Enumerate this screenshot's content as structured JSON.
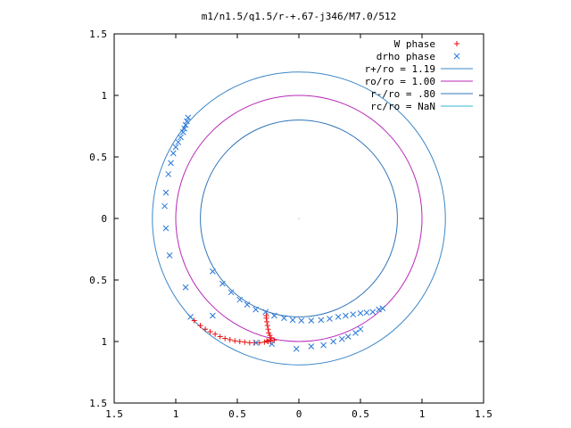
{
  "chart_data": {
    "type": "scatter",
    "title": "m1/n1.5/q1.5/r-+.67-j346/M7.0/512",
    "xlim": [
      -1.5,
      1.5
    ],
    "ylim": [
      -1.5,
      1.5
    ],
    "xticks": [
      {
        "v": -1.5,
        "label": "1.5"
      },
      {
        "v": -1,
        "label": "1"
      },
      {
        "v": -0.5,
        "label": "0.5"
      },
      {
        "v": 0,
        "label": "0"
      },
      {
        "v": 0.5,
        "label": "0.5"
      },
      {
        "v": 1,
        "label": "1"
      },
      {
        "v": 1.5,
        "label": "1.5"
      }
    ],
    "yticks": [
      {
        "v": 1.5,
        "label": "1.5"
      },
      {
        "v": 1,
        "label": "1"
      },
      {
        "v": 0.5,
        "label": "0.5"
      },
      {
        "v": 0,
        "label": "0"
      },
      {
        "v": -0.5,
        "label": "0.5"
      },
      {
        "v": -1,
        "label": "1"
      },
      {
        "v": -1.5,
        "label": "1.5"
      }
    ],
    "grid": false,
    "legend_position": "top-right",
    "circles": [
      {
        "name": "r+/ro = 1.19",
        "radius": 1.19,
        "color": "#3c87c8"
      },
      {
        "name": "ro/ro = 1.00",
        "radius": 1.0,
        "color": "#b828b8"
      },
      {
        "name": "r-/ro = .80",
        "radius": 0.8,
        "color": "#2f74b8"
      },
      {
        "name": "rc/ro = NaN",
        "radius": null,
        "color": "#32b4d0"
      }
    ],
    "series": [
      {
        "name": "W phase",
        "marker": "plus",
        "color": "#e81010",
        "points": [
          [
            -0.85,
            -0.83
          ],
          [
            -0.8,
            -0.87
          ],
          [
            -0.76,
            -0.9
          ],
          [
            -0.72,
            -0.92
          ],
          [
            -0.68,
            -0.94
          ],
          [
            -0.64,
            -0.96
          ],
          [
            -0.6,
            -0.975
          ],
          [
            -0.56,
            -0.985
          ],
          [
            -0.52,
            -0.995
          ],
          [
            -0.48,
            -1.0
          ],
          [
            -0.44,
            -1.005
          ],
          [
            -0.4,
            -1.01
          ],
          [
            -0.36,
            -1.01
          ],
          [
            -0.32,
            -1.01
          ],
          [
            -0.28,
            -1.005
          ],
          [
            -0.25,
            -1.0
          ],
          [
            -0.235,
            -0.99
          ],
          [
            -0.225,
            -0.97
          ],
          [
            -0.235,
            -0.95
          ],
          [
            -0.245,
            -0.93
          ],
          [
            -0.25,
            -0.9
          ],
          [
            -0.255,
            -0.87
          ],
          [
            -0.26,
            -0.84
          ],
          [
            -0.265,
            -0.81
          ],
          [
            -0.265,
            -0.79
          ],
          [
            -0.2,
            -0.99
          ],
          [
            -0.26,
            -0.995
          ],
          [
            -0.23,
            -1.0
          ]
        ]
      },
      {
        "name": "drho phase",
        "marker": "cross",
        "color": "#2878d8",
        "points": [
          [
            -0.9,
            0.82
          ],
          [
            -0.91,
            0.79
          ],
          [
            -0.92,
            0.76
          ],
          [
            -0.93,
            0.73
          ],
          [
            -0.94,
            0.7
          ],
          [
            -0.96,
            0.66
          ],
          [
            -0.98,
            0.62
          ],
          [
            -1.0,
            0.58
          ],
          [
            -1.02,
            0.53
          ],
          [
            -1.04,
            0.45
          ],
          [
            -1.06,
            0.36
          ],
          [
            -1.08,
            0.21
          ],
          [
            -1.09,
            0.1
          ],
          [
            -1.08,
            -0.08
          ],
          [
            -1.05,
            -0.3
          ],
          [
            -0.92,
            -0.56
          ],
          [
            -0.88,
            -0.8
          ],
          [
            -0.7,
            -0.79
          ],
          [
            -0.7,
            -0.43
          ],
          [
            -0.62,
            -0.53
          ],
          [
            -0.55,
            -0.6
          ],
          [
            -0.48,
            -0.66
          ],
          [
            -0.42,
            -0.7
          ],
          [
            -0.35,
            -0.74
          ],
          [
            -0.27,
            -0.76
          ],
          [
            -0.2,
            -0.79
          ],
          [
            -0.12,
            -0.81
          ],
          [
            -0.05,
            -0.825
          ],
          [
            0.02,
            -0.83
          ],
          [
            0.1,
            -0.83
          ],
          [
            0.18,
            -0.825
          ],
          [
            0.25,
            -0.815
          ],
          [
            0.32,
            -0.8
          ],
          [
            0.38,
            -0.79
          ],
          [
            0.44,
            -0.78
          ],
          [
            0.5,
            -0.77
          ],
          [
            0.55,
            -0.765
          ],
          [
            0.6,
            -0.76
          ],
          [
            0.65,
            -0.74
          ],
          [
            0.68,
            -0.73
          ],
          [
            0.5,
            -0.9
          ],
          [
            0.46,
            -0.93
          ],
          [
            0.4,
            -0.96
          ],
          [
            0.35,
            -0.98
          ],
          [
            0.28,
            -1.0
          ],
          [
            0.2,
            -1.03
          ],
          [
            0.1,
            -1.04
          ],
          [
            -0.02,
            -1.06
          ],
          [
            -0.22,
            -1.02
          ],
          [
            -0.35,
            -1.01
          ]
        ]
      }
    ],
    "origin_marker": [
      0,
      0
    ]
  }
}
